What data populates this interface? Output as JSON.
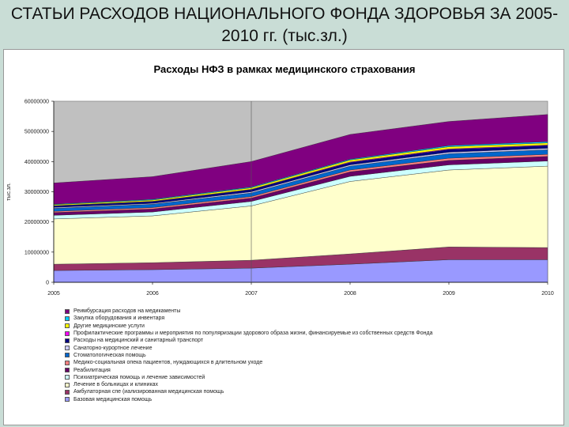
{
  "slide_title": "СТАТЬИ РАСХОДОВ НАЦИОНАЛЬНОГО ФОНДА ЗДОРОВЬЯ ЗА 2005-2010 гг. (тыс.зл.)",
  "chart_data": {
    "type": "area",
    "stacked": true,
    "title": "Расходы НФЗ в рамках медицинского страхования",
    "ylabel": "тыс.зл.",
    "xlabel": "",
    "x": [
      "2005",
      "2006",
      "2007",
      "2008",
      "2009",
      "2010"
    ],
    "ylim": [
      0,
      60000000
    ],
    "yticks": [
      "0",
      "10000000",
      "20000000",
      "30000000",
      "40000000",
      "50000000",
      "60000000"
    ],
    "grid": false,
    "legend_position": "bottom",
    "series": [
      {
        "name": "Базовая медицинская помощь",
        "color": "#9999ff",
        "values": [
          3900000,
          4200000,
          4700000,
          6000000,
          7500000,
          7500000
        ]
      },
      {
        "name": "Амбулаторная спе (иализированная медицинская помощь",
        "color": "#993366",
        "values": [
          2100000,
          2300000,
          2600000,
          3400000,
          4200000,
          4000000
        ]
      },
      {
        "name": "Лечение в больницах и клиниках",
        "color": "#ffffcc",
        "values": [
          15000000,
          15500000,
          18000000,
          24000000,
          25500000,
          27000000
        ]
      },
      {
        "name": "Психиатрическая помощь и лечение зависимостей",
        "color": "#ccffff",
        "values": [
          1200000,
          1300000,
          1500000,
          1700000,
          1700000,
          1700000
        ]
      },
      {
        "name": "Реабилитация",
        "color": "#660066",
        "values": [
          900000,
          1000000,
          1100000,
          1500000,
          1500000,
          1500000
        ]
      },
      {
        "name": "Медико-социальная опека пациентов, нуждающихся в длительном уходе",
        "color": "#ff8080",
        "values": [
          400000,
          450000,
          500000,
          600000,
          700000,
          700000
        ]
      },
      {
        "name": "Стоматологическая помощь",
        "color": "#0066cc",
        "values": [
          1000000,
          1100000,
          1200000,
          1300000,
          1500000,
          1500000
        ]
      },
      {
        "name": "Санаторно-курортное лечение",
        "color": "#ccccff",
        "values": [
          300000,
          300000,
          400000,
          400000,
          500000,
          500000
        ]
      },
      {
        "name": "Расходы на медицинский и санитарный транспорт",
        "color": "#000080",
        "values": [
          500000,
          600000,
          700000,
          800000,
          900000,
          900000
        ]
      },
      {
        "name": "Профилактические программы и мероприятия по популяризации здорового образа жизни, финансируемые из собственных средств Фонда",
        "color": "#ff00ff",
        "values": [
          100000,
          100000,
          100000,
          200000,
          200000,
          200000
        ]
      },
      {
        "name": "Другие медицинские услуги",
        "color": "#ffff00",
        "values": [
          300000,
          400000,
          500000,
          600000,
          700000,
          700000
        ]
      },
      {
        "name": "Закупка оборудования и инвентаря",
        "color": "#00ccff",
        "values": [
          200000,
          250000,
          300000,
          300000,
          400000,
          400000
        ]
      },
      {
        "name": "Реимбурсация расходов на медикаменты",
        "color": "#800080",
        "values": [
          7000000,
          7500000,
          8400000,
          8200000,
          8000000,
          9000000
        ]
      }
    ]
  }
}
